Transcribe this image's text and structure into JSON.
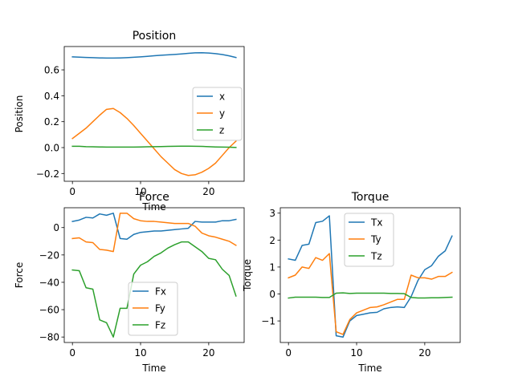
{
  "chart_data": [
    {
      "type": "line",
      "title": "Position",
      "xlabel": "Time",
      "ylabel": "Position",
      "xlim": [
        -1.2,
        25.2
      ],
      "ylim": [
        -0.26,
        0.78
      ],
      "xticks": [
        0,
        10,
        20
      ],
      "yticks": [
        -0.2,
        0.0,
        0.2,
        0.4,
        0.6
      ],
      "ytick_labels": [
        "−0.2",
        "0.0",
        "0.2",
        "0.4",
        "0.6"
      ],
      "legend_position": "center-right",
      "x": [
        0,
        1,
        2,
        3,
        4,
        5,
        6,
        7,
        8,
        9,
        10,
        11,
        12,
        13,
        14,
        15,
        16,
        17,
        18,
        19,
        20,
        21,
        22,
        23,
        24
      ],
      "series": [
        {
          "name": "x",
          "color": "#1f77b4",
          "values": [
            0.7,
            0.698,
            0.696,
            0.694,
            0.692,
            0.691,
            0.691,
            0.692,
            0.694,
            0.697,
            0.7,
            0.704,
            0.709,
            0.713,
            0.716,
            0.719,
            0.723,
            0.727,
            0.731,
            0.732,
            0.73,
            0.725,
            0.718,
            0.708,
            0.695
          ]
        },
        {
          "name": "y",
          "color": "#ff7f0e",
          "values": [
            0.07,
            0.11,
            0.15,
            0.2,
            0.25,
            0.295,
            0.302,
            0.27,
            0.225,
            0.17,
            0.11,
            0.05,
            -0.01,
            -0.07,
            -0.12,
            -0.17,
            -0.2,
            -0.215,
            -0.21,
            -0.19,
            -0.16,
            -0.12,
            -0.06,
            0.0,
            0.05
          ]
        },
        {
          "name": "z",
          "color": "#2ca02c",
          "values": [
            0.01,
            0.01,
            0.007,
            0.006,
            0.005,
            0.004,
            0.004,
            0.004,
            0.004,
            0.004,
            0.005,
            0.006,
            0.007,
            0.008,
            0.009,
            0.01,
            0.011,
            0.011,
            0.01,
            0.009,
            0.007,
            0.005,
            0.004,
            0.003,
            0.001
          ]
        }
      ]
    },
    {
      "type": "line",
      "title": "Force",
      "xlabel": "Time",
      "ylabel": "Force",
      "xlim": [
        -1.2,
        25.2
      ],
      "ylim": [
        -84,
        14.5
      ],
      "xticks": [
        0,
        10,
        20
      ],
      "yticks": [
        -80,
        -60,
        -40,
        -20,
        0
      ],
      "ytick_labels": [
        "−80",
        "−60",
        "−40",
        "−20",
        "0"
      ],
      "legend_position": "lower-center",
      "x": [
        0,
        1,
        2,
        3,
        4,
        5,
        6,
        7,
        8,
        9,
        10,
        11,
        12,
        13,
        14,
        15,
        16,
        17,
        18,
        19,
        20,
        21,
        22,
        23,
        24
      ],
      "series": [
        {
          "name": "Fx",
          "color": "#1f77b4",
          "values": [
            4.5,
            5.5,
            7.5,
            7,
            10,
            9,
            10.5,
            -8,
            -8.5,
            -5,
            -3.5,
            -3,
            -2.5,
            -2.5,
            -2,
            -1.5,
            -1,
            -0.5,
            4.5,
            4,
            4,
            4,
            5,
            5,
            6
          ]
        },
        {
          "name": "Fy",
          "color": "#ff7f0e",
          "values": [
            -8,
            -7.5,
            -10.5,
            -11,
            -16,
            -16.5,
            -17.5,
            10.5,
            10.5,
            6.5,
            5,
            4.5,
            4.5,
            4,
            3.5,
            3,
            3,
            3,
            1,
            -4,
            -6,
            -7,
            -8.5,
            -10,
            -13
          ]
        },
        {
          "name": "Fz",
          "color": "#2ca02c",
          "values": [
            -31,
            -31.5,
            -44,
            -45,
            -67.5,
            -69.5,
            -80,
            -59,
            -59,
            -34,
            -27.5,
            -25,
            -21,
            -18.5,
            -15,
            -12.5,
            -10.5,
            -10.5,
            -14,
            -17.5,
            -22.5,
            -23.5,
            -30.5,
            -35,
            -50
          ]
        }
      ]
    },
    {
      "type": "line",
      "title": "Torque",
      "xlabel": "Time",
      "ylabel": "Torque",
      "xlim": [
        -1.2,
        25.2
      ],
      "ylim": [
        -1.8,
        3.2
      ],
      "xticks": [
        0,
        10,
        20
      ],
      "yticks": [
        -1,
        0,
        1,
        2,
        3
      ],
      "ytick_labels": [
        "−1",
        "0",
        "1",
        "2",
        "3"
      ],
      "legend_position": "upper-center",
      "x": [
        0,
        1,
        2,
        3,
        4,
        5,
        6,
        7,
        8,
        9,
        10,
        11,
        12,
        13,
        14,
        15,
        16,
        17,
        18,
        19,
        20,
        21,
        22,
        23,
        24
      ],
      "series": [
        {
          "name": "Tx",
          "color": "#1f77b4",
          "values": [
            1.3,
            1.25,
            1.8,
            1.85,
            2.65,
            2.7,
            2.9,
            -1.55,
            -1.6,
            -1.0,
            -0.8,
            -0.75,
            -0.7,
            -0.68,
            -0.55,
            -0.5,
            -0.48,
            -0.5,
            -0.1,
            0.5,
            0.9,
            1.05,
            1.4,
            1.6,
            2.15
          ]
        },
        {
          "name": "Ty",
          "color": "#ff7f0e",
          "values": [
            0.6,
            0.7,
            1.0,
            0.95,
            1.35,
            1.25,
            1.5,
            -1.4,
            -1.5,
            -0.95,
            -0.7,
            -0.6,
            -0.5,
            -0.48,
            -0.4,
            -0.3,
            -0.2,
            -0.2,
            0.7,
            0.6,
            0.6,
            0.55,
            0.65,
            0.65,
            0.8
          ]
        },
        {
          "name": "Tz",
          "color": "#2ca02c",
          "values": [
            -0.15,
            -0.12,
            -0.12,
            -0.12,
            -0.12,
            -0.13,
            -0.13,
            0.03,
            0.04,
            0.02,
            0.03,
            0.03,
            0.03,
            0.03,
            0.03,
            0.02,
            0.02,
            0.01,
            -0.13,
            -0.15,
            -0.15,
            -0.14,
            -0.14,
            -0.13,
            -0.12
          ]
        }
      ]
    }
  ]
}
